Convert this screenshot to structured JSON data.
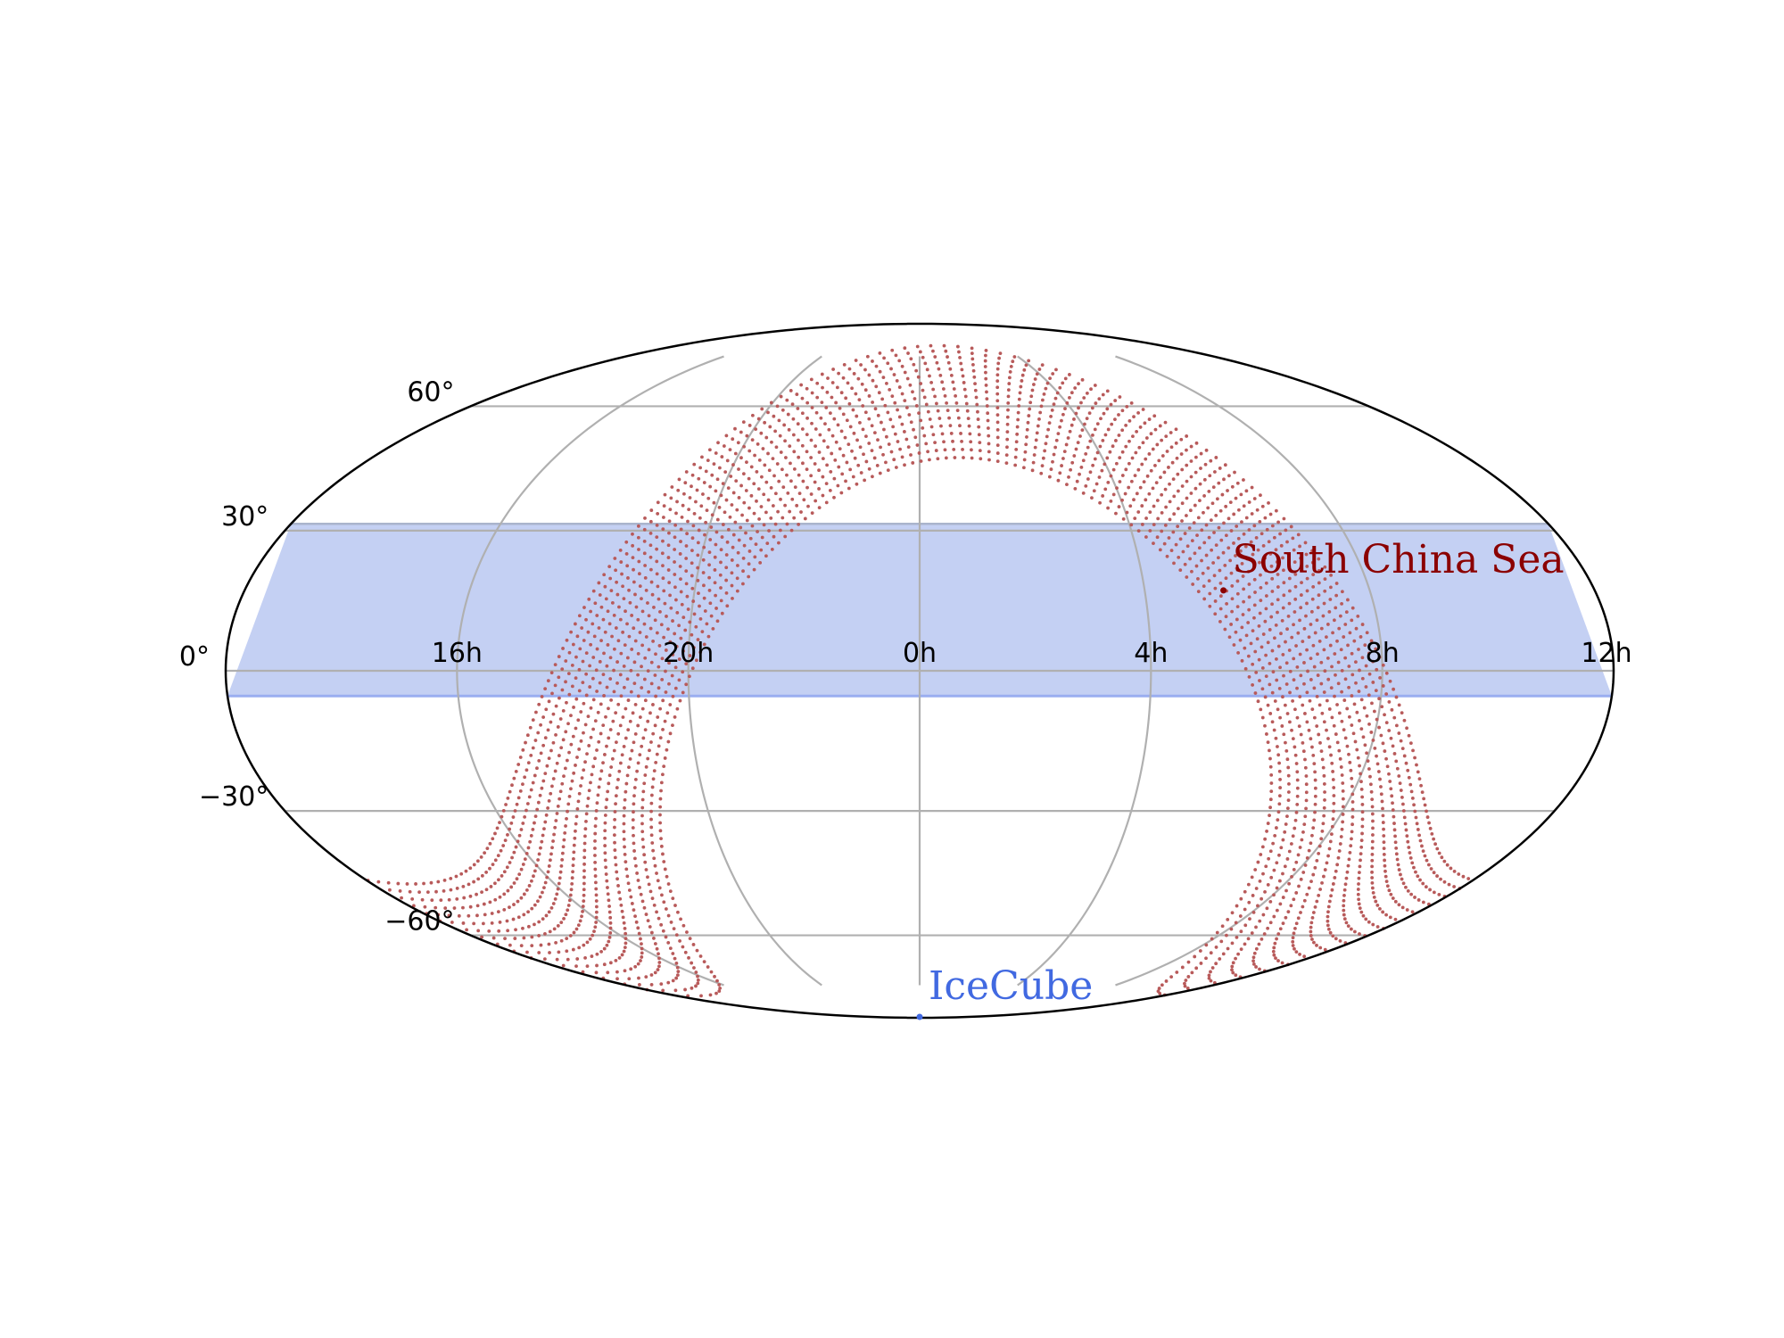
{
  "chart_data": {
    "type": "scatter",
    "projection": "mollweide",
    "title": "",
    "xlabel": "",
    "ylabel": "",
    "grid": true,
    "ra_range_hours": [
      12,
      -12
    ],
    "dec_range_deg": [
      -90,
      90
    ],
    "x_tick_labels": [
      {
        "label": "16h",
        "lon_deg": -120
      },
      {
        "label": "20h",
        "lon_deg": -60
      },
      {
        "label": "0h",
        "lon_deg": 0
      },
      {
        "label": "4h",
        "lon_deg": 60
      },
      {
        "label": "8h",
        "lon_deg": 120
      },
      {
        "label": "12h",
        "lon_deg": 180
      }
    ],
    "y_tick_labels": [
      {
        "label": "60°",
        "dec_deg": 60
      },
      {
        "label": "30°",
        "dec_deg": 30
      },
      {
        "label": "0°",
        "dec_deg": 0
      },
      {
        "label": "−30°",
        "dec_deg": -30
      },
      {
        "label": "−60°",
        "dec_deg": -60
      }
    ],
    "band": {
      "dec_min": -5.3,
      "dec_max": 31.5,
      "color": "#c4d0f3"
    },
    "points": [
      {
        "name": "South China Sea",
        "ra_hours": 5.4,
        "dec_deg": 17,
        "color": "#8b0000"
      },
      {
        "name": "IceCube",
        "ra_hours": 0,
        "dec_deg": -89,
        "color": "#4169e1"
      }
    ],
    "galactic_plane": {
      "width_deg": 16,
      "color": "#b85a5a"
    }
  }
}
